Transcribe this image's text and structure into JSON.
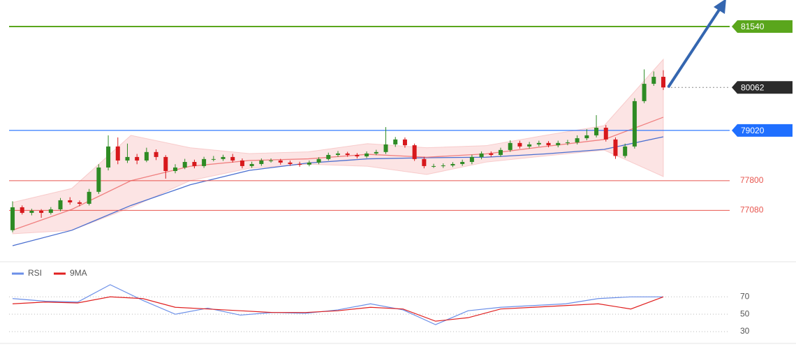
{
  "chart_data": [
    {
      "type": "candlestick",
      "ylim": [
        75885,
        82183
      ],
      "color_up": "#2e8b24",
      "color_down": "#d7181c",
      "open": [
        76600,
        77155,
        77020,
        77070,
        77020,
        77105,
        77325,
        77275,
        77240,
        77530,
        78120,
        78630,
        78290,
        78375,
        78290,
        78495,
        78375,
        78035,
        78120,
        78255,
        78155,
        78325,
        78325,
        78375,
        78290,
        78155,
        78205,
        78290,
        78290,
        78240,
        78205,
        78190,
        78240,
        78325,
        78425,
        78460,
        78425,
        78390,
        78460,
        78495,
        78680,
        78800,
        78660,
        78325,
        78155,
        78155,
        78170,
        78205,
        78255,
        78375,
        78460,
        78425,
        78545,
        78715,
        78630,
        78680,
        78715,
        78660,
        78715,
        78730,
        78830,
        78900,
        79085,
        78800,
        78400,
        78630,
        79730,
        80150,
        80320
      ],
      "high": [
        77300,
        77200,
        77120,
        77110,
        77160,
        77380,
        77400,
        77320,
        77600,
        78200,
        78900,
        78850,
        78700,
        78450,
        78600,
        78560,
        78420,
        78200,
        78330,
        78310,
        78380,
        78400,
        78430,
        78450,
        78340,
        78260,
        78340,
        78340,
        78330,
        78290,
        78260,
        78290,
        78370,
        78480,
        78520,
        78500,
        78470,
        78510,
        78550,
        79100,
        78860,
        78850,
        78700,
        78380,
        78210,
        78220,
        78250,
        78310,
        78430,
        78510,
        78510,
        78600,
        78780,
        78770,
        78740,
        78770,
        78760,
        78770,
        78790,
        78900,
        79050,
        79390,
        79150,
        78850,
        78700,
        79800,
        80500,
        80450,
        80480
      ],
      "low": [
        76550,
        76980,
        76960,
        76900,
        76980,
        77060,
        77220,
        77180,
        77200,
        77480,
        78050,
        78200,
        78230,
        78200,
        78250,
        78300,
        77850,
        77980,
        78080,
        78100,
        78110,
        78270,
        78280,
        78240,
        78100,
        78110,
        78160,
        78240,
        78190,
        78160,
        78140,
        78150,
        78200,
        78290,
        78380,
        78380,
        78340,
        78350,
        78420,
        78450,
        78620,
        78600,
        78280,
        78100,
        78110,
        78110,
        78130,
        78160,
        78200,
        78320,
        78380,
        78380,
        78500,
        78580,
        78580,
        78630,
        78610,
        78610,
        78660,
        78680,
        78780,
        78850,
        78750,
        78330,
        78350,
        78580,
        79680,
        80100,
        80000
      ],
      "close": [
        77155,
        77020,
        77070,
        77020,
        77105,
        77325,
        77275,
        77240,
        77530,
        78120,
        78630,
        78290,
        78375,
        78290,
        78495,
        78375,
        78035,
        78120,
        78255,
        78155,
        78325,
        78325,
        78375,
        78290,
        78155,
        78205,
        78290,
        78290,
        78240,
        78205,
        78190,
        78240,
        78325,
        78425,
        78460,
        78425,
        78390,
        78460,
        78495,
        78680,
        78800,
        78660,
        78325,
        78155,
        78155,
        78170,
        78205,
        78255,
        78375,
        78460,
        78425,
        78545,
        78715,
        78630,
        78680,
        78715,
        78660,
        78715,
        78730,
        78830,
        78900,
        79085,
        78800,
        78400,
        78630,
        79730,
        80150,
        80320,
        80062
      ],
      "band": {
        "color": "#f4a7a7",
        "upper": [
          77274,
          77612,
          78900,
          78600,
          78459,
          78500,
          78700,
          78600,
          78650,
          78900,
          79136,
          80745
        ],
        "lower": [
          76512,
          76597,
          77150,
          77800,
          78100,
          78200,
          78150,
          77950,
          78250,
          78400,
          78543,
          77900
        ]
      },
      "series": [
        {
          "color": "#4a6fd0",
          "values": [
            76224,
            76597,
            77200,
            77700,
            78050,
            78230,
            78330,
            78357,
            78370,
            78450,
            78560,
            78865
          ]
        },
        {
          "color": "#f08080",
          "values": [
            76600,
            77104,
            77800,
            78150,
            78290,
            78330,
            78440,
            78370,
            78450,
            78630,
            78800,
            79340
          ]
        }
      ],
      "levels": [
        {
          "value": 81540,
          "color": "#5aa61c",
          "style": "box"
        },
        {
          "value": 80062,
          "color": "#2b2b2b",
          "style": "current"
        },
        {
          "value": 79020,
          "color": "#1f6fff",
          "style": "box"
        },
        {
          "value": 77800,
          "color": "#e8564f",
          "style": "text"
        },
        {
          "value": 77080,
          "color": "#e8564f",
          "style": "text"
        }
      ]
    },
    {
      "type": "line",
      "ylim": [
        18,
        108
      ],
      "yticks": [
        70,
        50,
        30
      ],
      "grid": true,
      "series": [
        {
          "name": "RSI",
          "color": "#6b8fe8",
          "values": [
            68,
            65,
            64,
            84,
            66,
            50,
            57,
            49,
            52,
            51,
            55,
            62,
            55,
            38,
            54,
            58,
            60,
            62,
            68,
            70,
            70
          ]
        },
        {
          "name": "9MA",
          "color": "#e02020",
          "values": [
            62,
            64,
            63,
            70,
            68,
            58,
            56,
            54,
            52,
            52,
            54,
            58,
            56,
            42,
            46,
            56,
            58,
            60,
            62,
            56,
            70
          ]
        }
      ]
    }
  ]
}
